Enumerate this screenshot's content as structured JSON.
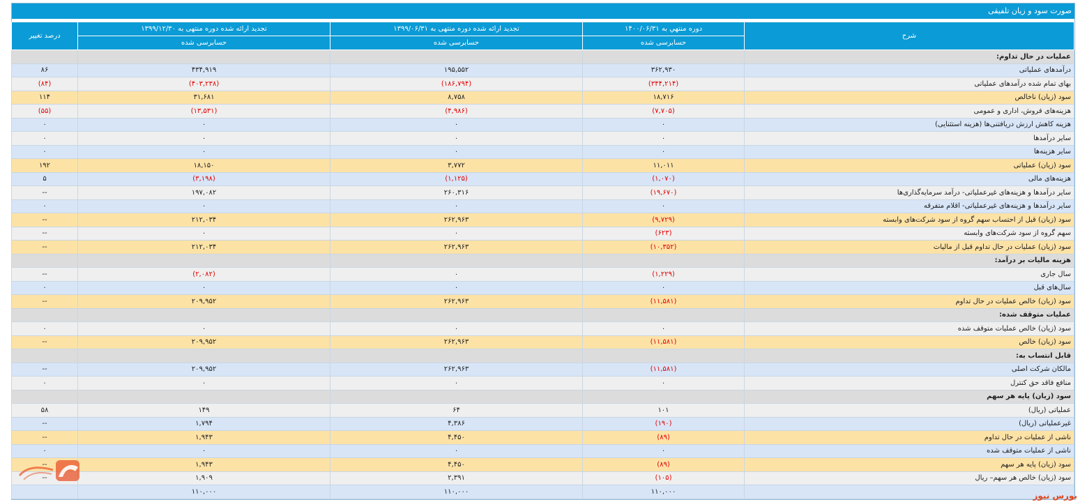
{
  "title": "صورت سود و زیان تلفیقی",
  "headers": {
    "desc": "شرح",
    "periods": [
      {
        "label": "دوره منتهي به ۱۴۰۰/۰۶/۳۱",
        "status": "حسابرسی شده"
      },
      {
        "label": "تجدید ارائه شده دوره منتهی به ۱۳۹۹/۰۶/۳۱",
        "status": "حسابرسی شده"
      },
      {
        "label": "تجدید ارائه شده دوره منتهی به ۱۳۹۹/۱۲/۳۰",
        "status": "حسابرسی شده"
      }
    ],
    "pct": "درصد تغییر"
  },
  "rows": [
    {
      "type": "section",
      "label": "عملیات در حال تداوم:",
      "v": [
        "",
        "",
        "",
        ""
      ]
    },
    {
      "type": "blue",
      "label": "درآمدهای عملیاتی",
      "v": [
        "۳۶۲,۹۳۰",
        "۱۹۵,۵۵۲",
        "۴۳۴,۹۱۹",
        "۸۶"
      ]
    },
    {
      "type": "gray",
      "label": "بهای تمام شده درآمدهای عملیاتی",
      "v": [
        "(۳۴۴,۲۱۴)",
        "(۱۸۶,۷۹۴)",
        "(۴۰۳,۲۳۸)",
        "(۸۴)"
      ]
    },
    {
      "type": "orange",
      "label": "سود (زیان) ناخالص",
      "v": [
        "۱۸,۷۱۶",
        "۸,۷۵۸",
        "۳۱,۶۸۱",
        "۱۱۴"
      ]
    },
    {
      "type": "gray",
      "label": "هزینه‌های فروش، اداری و عمومی",
      "v": [
        "(۷,۷۰۵)",
        "(۴,۹۸۶)",
        "(۱۳,۵۳۱)",
        "(۵۵)"
      ]
    },
    {
      "type": "blue",
      "label": "هزینه کاهش ارزش دریافتنی‌ها (هزینه استثنایی)",
      "v": [
        "۰",
        "۰",
        "۰",
        "۰"
      ]
    },
    {
      "type": "gray",
      "label": "سایر درآمدها",
      "v": [
        "۰",
        "۰",
        "۰",
        "۰"
      ]
    },
    {
      "type": "blue",
      "label": "سایر هزینه‌ها",
      "v": [
        "۰",
        "۰",
        "۰",
        "۰"
      ]
    },
    {
      "type": "orange",
      "label": "سود (زیان) عملیاتی",
      "v": [
        "۱۱,۰۱۱",
        "۳,۷۷۲",
        "۱۸,۱۵۰",
        "۱۹۲"
      ]
    },
    {
      "type": "blue",
      "label": "هزینه‌های مالی",
      "v": [
        "(۱,۰۷۰)",
        "(۱,۱۲۵)",
        "(۳,۱۹۸)",
        "۵"
      ]
    },
    {
      "type": "gray",
      "label": "سایر درآمدها و هزینه‌های غیرعملیاتی- درآمد سرمایه‌گذاری‌ها",
      "v": [
        "(۱۹,۶۷۰)",
        "۲۶۰,۳۱۶",
        "۱۹۷,۰۸۲",
        "--"
      ]
    },
    {
      "type": "blue",
      "label": "سایر درآمدها و هزینه‌های غیرعملیاتی- اقلام متفرقه",
      "v": [
        "۰",
        "۰",
        "۰",
        "۰"
      ]
    },
    {
      "type": "orange",
      "label": "سود (زیان) قبل از احتساب سهم گروه از سود شرکت‌های وابسته",
      "v": [
        "(۹,۷۲۹)",
        "۲۶۲,۹۶۳",
        "۲۱۲,۰۳۴",
        "--"
      ]
    },
    {
      "type": "gray",
      "label": "سهم گروه از سود شرکت‌های وابسته",
      "v": [
        "(۶۲۳)",
        "۰",
        "۰",
        "--"
      ]
    },
    {
      "type": "orange",
      "label": "سود (زیان) عملیات در حال تداوم قبل از مالیات",
      "v": [
        "(۱۰,۳۵۲)",
        "۲۶۲,۹۶۳",
        "۲۱۲,۰۳۴",
        "--"
      ]
    },
    {
      "type": "section",
      "label": "هزینه مالیات بر درآمد:",
      "v": [
        "",
        "",
        "",
        ""
      ]
    },
    {
      "type": "gray",
      "label": "سال جاری",
      "v": [
        "(۱,۲۲۹)",
        "۰",
        "(۲,۰۸۲)",
        "--"
      ]
    },
    {
      "type": "blue",
      "label": "سال‌های قبل",
      "v": [
        "۰",
        "۰",
        "۰",
        "۰"
      ]
    },
    {
      "type": "orange",
      "label": "سود (زیان) خالص عملیات در حال تداوم",
      "v": [
        "(۱۱,۵۸۱)",
        "۲۶۲,۹۶۳",
        "۲۰۹,۹۵۲",
        "--"
      ]
    },
    {
      "type": "section",
      "label": "عملیات متوقف شده:",
      "v": [
        "",
        "",
        "",
        ""
      ]
    },
    {
      "type": "gray",
      "label": "سود (زیان) خالص عملیات متوقف شده",
      "v": [
        "۰",
        "۰",
        "۰",
        "۰"
      ]
    },
    {
      "type": "orange",
      "label": "سود (زیان) خالص",
      "v": [
        "(۱۱,۵۸۱)",
        "۲۶۲,۹۶۳",
        "۲۰۹,۹۵۲",
        "--"
      ]
    },
    {
      "type": "section",
      "label": "قابل انتساب به:",
      "v": [
        "",
        "",
        "",
        ""
      ]
    },
    {
      "type": "blue",
      "label": "مالکان شرکت اصلی",
      "v": [
        "(۱۱,۵۸۱)",
        "۲۶۲,۹۶۳",
        "۲۰۹,۹۵۲",
        "--"
      ]
    },
    {
      "type": "gray",
      "label": "منافع فاقد حق کنترل",
      "v": [
        "۰",
        "۰",
        "۰",
        "۰"
      ]
    },
    {
      "type": "section",
      "label": "سود (زیان) پایه هر سهم",
      "v": [
        "",
        "",
        "",
        ""
      ]
    },
    {
      "type": "gray",
      "label": "عملیاتی (ریال)",
      "v": [
        "۱۰۱",
        "۶۴",
        "۱۴۹",
        "۵۸"
      ]
    },
    {
      "type": "blue",
      "label": "غیرعملیاتی (ریال)",
      "v": [
        "(۱۹۰)",
        "۴,۳۸۶",
        "۱,۷۹۴",
        "--"
      ]
    },
    {
      "type": "orange",
      "label": "ناشی از عملیات در حال تداوم",
      "v": [
        "(۸۹)",
        "۴,۴۵۰",
        "۱,۹۴۳",
        "--"
      ]
    },
    {
      "type": "blue",
      "label": "ناشی از عملیات متوقف شده",
      "v": [
        "۰",
        "۰",
        "۰",
        "۰"
      ]
    },
    {
      "type": "orange",
      "label": "سود (زیان) پایه هر سهم",
      "v": [
        "(۸۹)",
        "۴,۴۵۰",
        "۱,۹۴۳",
        "--"
      ]
    },
    {
      "type": "gray",
      "label": "سود (زیان) خالص هر سهم– ریال",
      "v": [
        "(۱۰۵)",
        "۲,۳۹۱",
        "۱,۹۰۹",
        "--"
      ]
    },
    {
      "type": "blue",
      "label": "",
      "v": [
        "۱۱۰,۰۰۰",
        "۱۱۰,۰۰۰",
        "۱۱۰,۰۰۰",
        ""
      ]
    }
  ],
  "watermark": "بورس نیوز",
  "logo_icon": "bourse-news-logo-icon"
}
